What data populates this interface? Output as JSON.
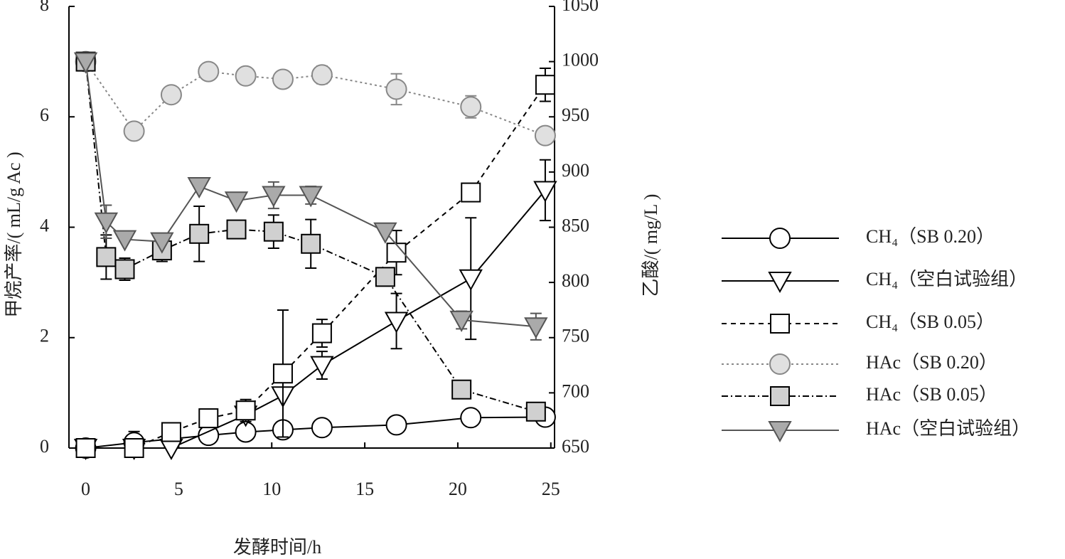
{
  "chart_data": {
    "type": "line",
    "x_label": "发酵时间/h",
    "y_label": "甲烷产率/( mL/g Ac )",
    "y2_label": "乙酸/( mg/L )",
    "xlim": [
      -0.9,
      25.2
    ],
    "xticks": [
      0,
      5,
      10,
      15,
      20,
      25
    ],
    "ylim": [
      0,
      8
    ],
    "yticks": [
      0,
      2,
      4,
      6,
      8
    ],
    "y2lim": [
      650,
      1050
    ],
    "y2ticks": [
      650,
      700,
      750,
      800,
      850,
      900,
      950,
      1000,
      1050
    ],
    "series": [
      {
        "name": "CH₄（SB 0.20）",
        "color": "#000000",
        "fill": "#ffffff",
        "marker": "circle",
        "dash": "none",
        "x": [
          0,
          2.6,
          6.6,
          8.6,
          10.6,
          12.7,
          16.7,
          20.7,
          24.7
        ],
        "values": [
          0,
          0.1,
          0.23,
          0.29,
          0.33,
          0.37,
          0.42,
          0.55,
          0.56
        ],
        "errors": [
          0.05,
          0.2,
          null,
          null,
          null,
          null,
          null,
          null,
          null
        ]
      },
      {
        "name": "CH₄（空白试验组）",
        "color": "#000000",
        "fill": "#ffffff",
        "marker": "tri",
        "dash": "none",
        "x": [
          0,
          2.6,
          4.6,
          8.6,
          10.6,
          12.7,
          16.7,
          20.7,
          24.7
        ],
        "values": [
          0,
          0,
          0,
          0.6,
          0.95,
          1.5,
          2.3,
          3.07,
          4.67
        ],
        "errors": [
          null,
          null,
          null,
          null,
          null,
          0.25,
          0.5,
          1.1,
          0.55
        ]
      },
      {
        "name": "CH₄（SB 0.05）",
        "color": "#000000",
        "fill": "#ffffff",
        "marker": "square",
        "dash": "7,6",
        "x": [
          0,
          2.6,
          4.6,
          6.6,
          8.6,
          10.6,
          12.7,
          16.7,
          20.7,
          24.7
        ],
        "values": [
          0,
          0,
          0.29,
          0.54,
          0.68,
          1.35,
          2.08,
          3.54,
          4.63,
          6.58
        ],
        "errors": [
          null,
          null,
          null,
          null,
          0.2,
          1.15,
          0.25,
          0.4,
          null,
          0.3
        ]
      },
      {
        "name": "HAc（SB 0.20）",
        "color": "#888888",
        "fill": "#e0e0e0",
        "marker": "circle",
        "dash": "3,4",
        "axis": "y2",
        "x": [
          0,
          2.6,
          4.6,
          6.6,
          8.6,
          10.6,
          12.7,
          16.7,
          20.7,
          24.7
        ],
        "values": [
          1000,
          937,
          970,
          991,
          987,
          984,
          988,
          975,
          959,
          933
        ],
        "errors": [
          null,
          null,
          null,
          null,
          5,
          null,
          8,
          14,
          10,
          null
        ]
      },
      {
        "name": "HAc（SB 0.05）",
        "color": "#000000",
        "fill": "#d0d0d0",
        "marker": "square",
        "dash": "9,4,2,4",
        "axis": "y2",
        "x": [
          0,
          1.1,
          2.1,
          4.1,
          6.1,
          8.1,
          10.1,
          12.1,
          16.1,
          20.2,
          24.2
        ],
        "values": [
          1000,
          823,
          812,
          829,
          844,
          848,
          846,
          835,
          805,
          703,
          683
        ],
        "errors": [
          null,
          20,
          10,
          10,
          25,
          8,
          15,
          22,
          8,
          6,
          null
        ]
      },
      {
        "name": "HAc（空白试验组）",
        "color": "#555555",
        "fill": "#aaaaaa",
        "marker": "tri",
        "dash": "none",
        "axis": "y2",
        "x": [
          0,
          1.1,
          2.1,
          4.1,
          6.1,
          8.1,
          10.1,
          12.1,
          16.1,
          20.2,
          24.2
        ],
        "values": [
          1000,
          855,
          839,
          837,
          887,
          874,
          879,
          879,
          846,
          766,
          760
        ],
        "errors": [
          null,
          15,
          null,
          null,
          null,
          null,
          12,
          8,
          null,
          8,
          12
        ]
      }
    ]
  }
}
